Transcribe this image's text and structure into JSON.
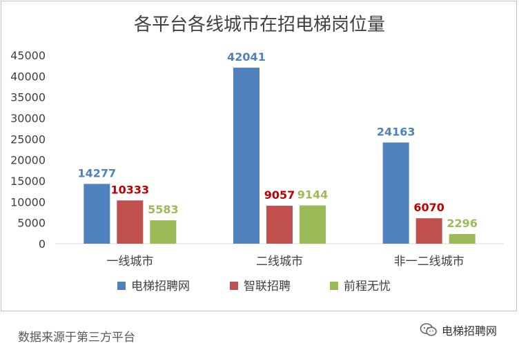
{
  "chart_data": {
    "type": "bar",
    "title": "各平台各线城市在招电梯岗位量",
    "categories": [
      "一线城市",
      "二线城市",
      "非一二线城市"
    ],
    "series": [
      {
        "name": "电梯招聘网",
        "values": [
          14277,
          42041,
          24163
        ],
        "color": "#4f81bd",
        "label_color": "#4f81bd"
      },
      {
        "name": "智联招聘",
        "values": [
          10333,
          9057,
          6070
        ],
        "color": "#c0504d",
        "label_color": "#c00000"
      },
      {
        "name": "前程无忧",
        "values": [
          5583,
          9144,
          2296
        ],
        "color": "#9bbb59",
        "label_color": "#9bbb59"
      }
    ],
    "ylim": [
      0,
      45000
    ],
    "yticks": [
      0,
      5000,
      10000,
      15000,
      20000,
      25000,
      30000,
      35000,
      40000,
      45000
    ],
    "grid": false,
    "legend_position": "bottom"
  },
  "footer": {
    "source_note": "数据来源于第三方平台",
    "watermark": "电梯招聘网",
    "watermark_icon": "wechat-icon"
  }
}
